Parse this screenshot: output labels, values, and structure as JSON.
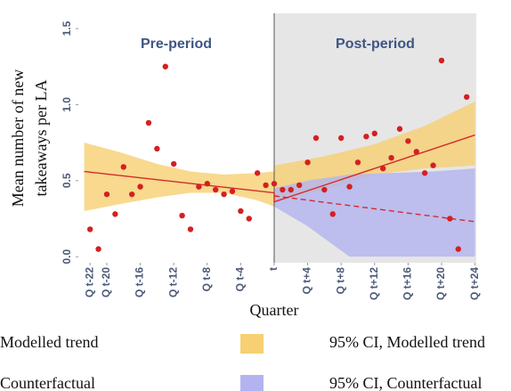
{
  "chart_data": {
    "type": "scatter",
    "annotations": [
      "Pre-period",
      "Post-period"
    ],
    "xlabel": "Quarter",
    "ylabel": [
      "Mean number of new",
      "takeaways per LA"
    ],
    "xlim": [
      -23.4,
      24.15
    ],
    "ylim": [
      -0.04,
      1.6
    ],
    "period_split": 0,
    "xticks": [
      {
        "value": -22,
        "label": "Q t-22"
      },
      {
        "value": -20,
        "label": "Q t-20"
      },
      {
        "value": -16,
        "label": "Q t-16"
      },
      {
        "value": -12,
        "label": "Q t-12"
      },
      {
        "value": -8,
        "label": "Q t-8"
      },
      {
        "value": -4,
        "label": "Q t-4"
      },
      {
        "value": 0,
        "label": "t"
      },
      {
        "value": 4,
        "label": "Q t+4"
      },
      {
        "value": 8,
        "label": "Q t+8"
      },
      {
        "value": 12,
        "label": "Q t+12"
      },
      {
        "value": 16,
        "label": "Q t+16"
      },
      {
        "value": 20,
        "label": "Q t+20"
      },
      {
        "value": 24,
        "label": "Q t+24"
      }
    ],
    "yticks": [
      {
        "value": 0,
        "label": "0.0"
      },
      {
        "value": 0.5,
        "label": "0.5"
      },
      {
        "value": 1,
        "label": "1.0"
      },
      {
        "value": 1.5,
        "label": "1.5"
      }
    ],
    "points": {
      "color": "#d42020",
      "x": [
        -22,
        -21,
        -20,
        -19,
        -18,
        -17,
        -16,
        -15,
        -14,
        -13,
        -12,
        -11,
        -10,
        -9,
        -8,
        -7,
        -6,
        -5,
        -4,
        -3,
        -2,
        -1,
        0,
        1,
        2,
        3,
        4,
        5,
        6,
        7,
        8,
        9,
        10,
        11,
        12,
        13,
        14,
        15,
        16,
        17,
        18,
        19,
        20,
        21,
        22,
        23
      ],
      "values": [
        0.18,
        0.05,
        0.41,
        0.28,
        0.59,
        0.41,
        0.46,
        0.88,
        0.71,
        1.25,
        0.61,
        0.27,
        0.18,
        0.46,
        0.48,
        0.44,
        0.41,
        0.43,
        0.3,
        0.25,
        0.55,
        0.47,
        0.48,
        0.44,
        0.44,
        0.47,
        0.62,
        0.78,
        0.44,
        0.28,
        0.78,
        0.46,
        0.62,
        0.79,
        0.81,
        0.58,
        0.65,
        0.84,
        0.76,
        0.69,
        0.55,
        0.6,
        1.29,
        0.25,
        0.05,
        1.05
      ]
    },
    "lines": [
      {
        "name": "Modelled trend",
        "color": "#d42a2a",
        "x": [
          -22.7,
          0,
          0,
          24
        ],
        "values": [
          0.56,
          0.42,
          0.36,
          0.8
        ]
      },
      {
        "name": "Counterfactual",
        "color": "#d42a2a",
        "dashed": true,
        "x": [
          0,
          24
        ],
        "values": [
          0.4,
          0.23
        ]
      }
    ],
    "bands": [
      {
        "name": "95% CI, Modelled trend",
        "color": "#f6d072",
        "pieces": [
          {
            "x": [
              -22.7,
              -18,
              -14,
              -10,
              -6,
              -2,
              0
            ],
            "lower": [
              0.3,
              0.35,
              0.39,
              0.42,
              0.42,
              0.37,
              0.33
            ],
            "upper": [
              0.75,
              0.68,
              0.61,
              0.56,
              0.54,
              0.55,
              0.56
            ]
          },
          {
            "x": [
              0,
              6,
              12,
              18,
              24
            ],
            "lower": [
              0.36,
              0.44,
              0.54,
              0.58,
              0.6
            ],
            "upper": [
              0.6,
              0.66,
              0.74,
              0.86,
              1.02
            ]
          }
        ]
      },
      {
        "name": "95% CI, Counterfactual",
        "color": "#b3b3f0",
        "pieces": [
          {
            "x": [
              0,
              4,
              9,
              14,
              19,
              24
            ],
            "lower": [
              0.33,
              0.2,
              0,
              0,
              0,
              0
            ],
            "upper": [
              0.45,
              0.5,
              0.54,
              0.55,
              0.56,
              0.58
            ]
          }
        ]
      }
    ]
  }
}
